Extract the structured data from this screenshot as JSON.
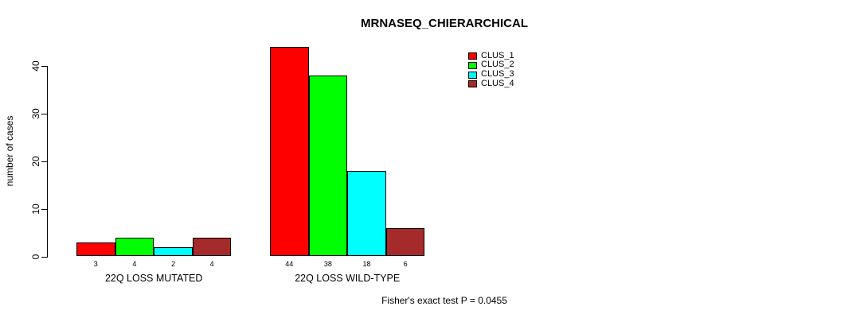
{
  "title": "MRNASEQ_CHIERARCHICAL",
  "footer": "Fisher's exact test P = 0.0455",
  "legend": {
    "entries": [
      {
        "label": "CLUS_1",
        "color": "#FF0000"
      },
      {
        "label": "CLUS_2",
        "color": "#00FF00"
      },
      {
        "label": "CLUS_3",
        "color": "#00FFFF"
      },
      {
        "label": "CLUS_4",
        "color": "#A52A2A"
      }
    ]
  },
  "chart_data": {
    "type": "bar",
    "title": "MRNASEQ_CHIERARCHICAL",
    "xlabel": "",
    "ylabel": "number of cases",
    "ylim": [
      0,
      44
    ],
    "yticks": [
      0,
      10,
      20,
      30,
      40
    ],
    "grid": false,
    "legend_position": "top-right",
    "categories": [
      "22Q LOSS MUTATED",
      "22Q LOSS WILD-TYPE"
    ],
    "series": [
      {
        "name": "CLUS_1",
        "color": "#FF0000",
        "values": [
          3,
          44
        ]
      },
      {
        "name": "CLUS_2",
        "color": "#00FF00",
        "values": [
          4,
          38
        ]
      },
      {
        "name": "CLUS_3",
        "color": "#00FFFF",
        "values": [
          2,
          18
        ]
      },
      {
        "name": "CLUS_4",
        "color": "#A52A2A",
        "values": [
          4,
          6
        ]
      }
    ],
    "groups": [
      {
        "label": "22Q LOSS MUTATED",
        "values": [
          3,
          4,
          2,
          4
        ]
      },
      {
        "label": "22Q LOSS WILD-TYPE",
        "values": [
          44,
          38,
          18,
          6
        ]
      }
    ],
    "bar_value_labels_shown": true,
    "annotation": "Fisher's exact test P = 0.0455"
  }
}
